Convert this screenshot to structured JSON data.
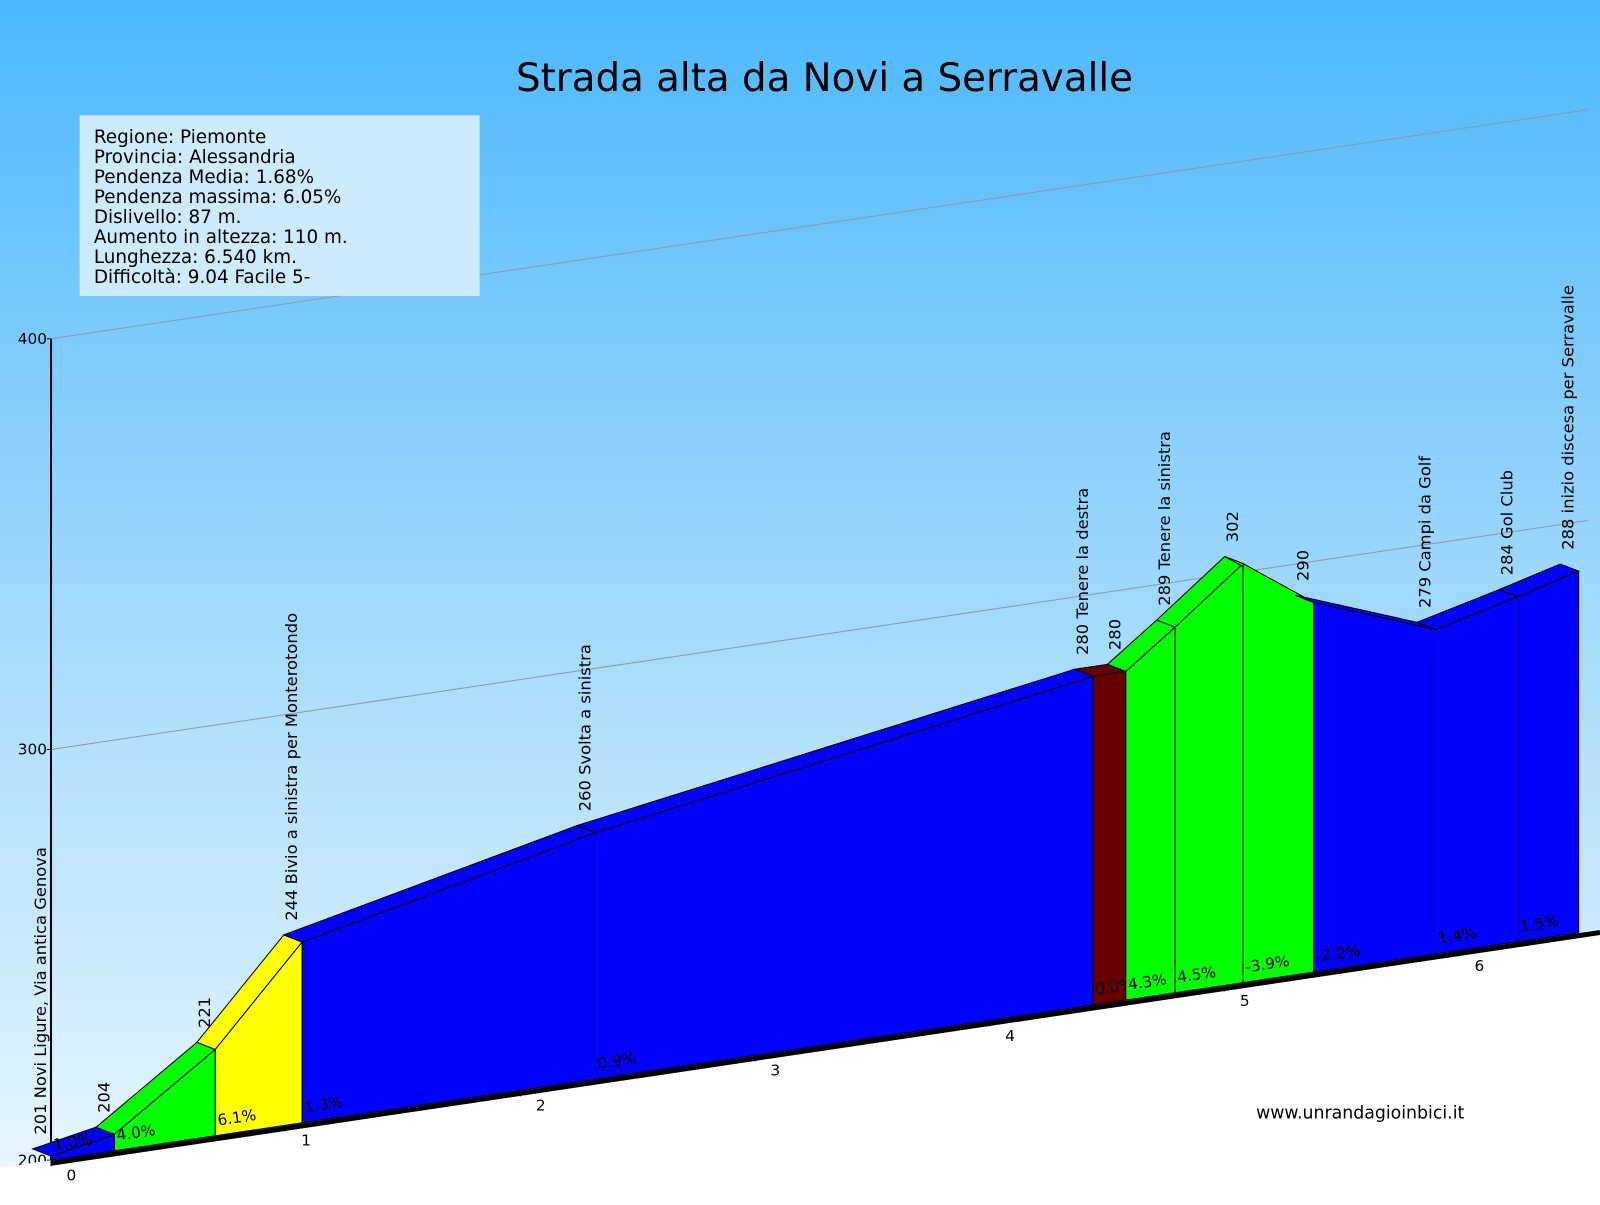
{
  "chart_data": {
    "type": "profile",
    "title": "Strada alta da Novi a Serravalle",
    "info": [
      "Regione: Piemonte",
      "Provincia: Alessandria",
      "Pendenza Media: 1.68%",
      "Pendenza massima: 6.05%",
      "Dislivello:   87 m.",
      "Aumento in altezza:   110 m.",
      "Lunghezza:  6.540 km.",
      "Difficoltà: 9.04 Facile 5-"
    ],
    "source": "www.unrandagioinbici.it",
    "x": [
      0,
      0.27,
      0.7,
      1.07,
      2.32,
      4.44,
      4.58,
      4.79,
      5.08,
      5.38,
      5.9,
      6.25,
      6.51
    ],
    "series": [
      {
        "values": [
          201,
          204,
          221,
          244,
          260,
          280,
          280,
          289,
          302,
          290,
          279,
          284,
          288
        ],
        "value_labels": [
          "201 Novi Ligure, Via antica Genova",
          "204",
          "221",
          "244 Bivio a sinistra per Monterotondo",
          "260 Svolta a sinistra",
          "280 Tenere la destra",
          "280",
          "289 Tenere la sinistra",
          "302",
          "290",
          "279 Campi da Golf",
          "284 Gol Club",
          "288 inizio discesa per Serravalle"
        ]
      }
    ],
    "segments": {
      "gradients": [
        1.0,
        4.0,
        6.1,
        1.3,
        0.9,
        0.0,
        4.3,
        4.5,
        -3.9,
        -2.2,
        1.4,
        1.5
      ],
      "labels": [
        "1.0%",
        "4.0%",
        "6.1%",
        "1.3%",
        "0.9%",
        "0.0%",
        "4.3%",
        "4.5%",
        "-3.9%",
        "-2.2%",
        "1.4%",
        "1.5%"
      ],
      "colors": [
        "#0000ff",
        "#00ff00",
        "#ffff00",
        "#0000ff",
        "#0000ff",
        "#660000",
        "#00ff00",
        "#00ff00",
        "#00ff00",
        "#0000ff",
        "#0000ff",
        "#0000ff"
      ]
    },
    "xlim": [
      0,
      6.54
    ],
    "xticks": [
      0,
      1,
      2,
      3,
      4,
      5,
      6
    ],
    "ylim": [
      200,
      400
    ],
    "yticks": [
      200,
      300,
      400
    ],
    "grid": true
  }
}
